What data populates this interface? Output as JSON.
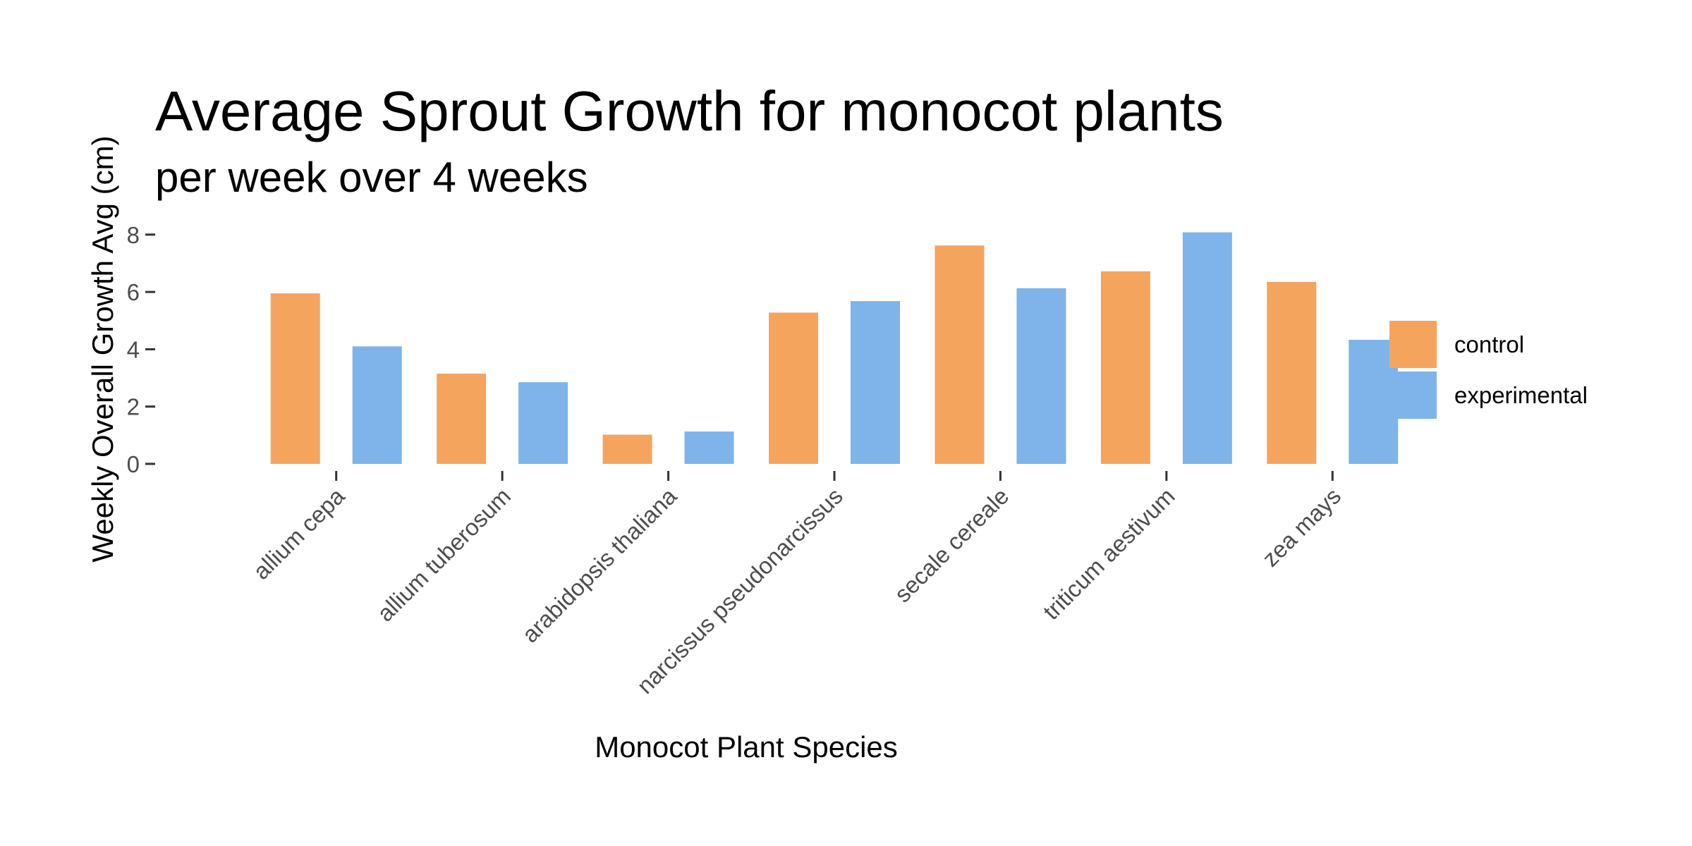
{
  "chart_data": {
    "type": "bar",
    "title": "Average Sprout Growth for monocot plants",
    "subtitle": "per week over 4 weeks",
    "xlabel": "Monocot Plant Species",
    "ylabel": "Weekly Overall Growth Avg (cm)",
    "ylim": [
      0,
      8.3
    ],
    "yticks": [
      0,
      2,
      4,
      6,
      8
    ],
    "grid": false,
    "legend_position": "right",
    "categories": [
      "allium cepa",
      "allium tuberosum",
      "arabidopsis thaliana",
      "narcissus pseudonarcissus",
      "secale cereale",
      "triticum aestivum",
      "zea mays"
    ],
    "series": [
      {
        "name": "control",
        "color": "#F5A45E",
        "values": [
          5.95,
          3.15,
          1.02,
          5.28,
          7.62,
          6.72,
          6.35
        ]
      },
      {
        "name": "experimental",
        "color": "#7EB4EA",
        "values": [
          4.1,
          2.85,
          1.13,
          5.68,
          6.13,
          8.08,
          4.33
        ]
      }
    ]
  }
}
